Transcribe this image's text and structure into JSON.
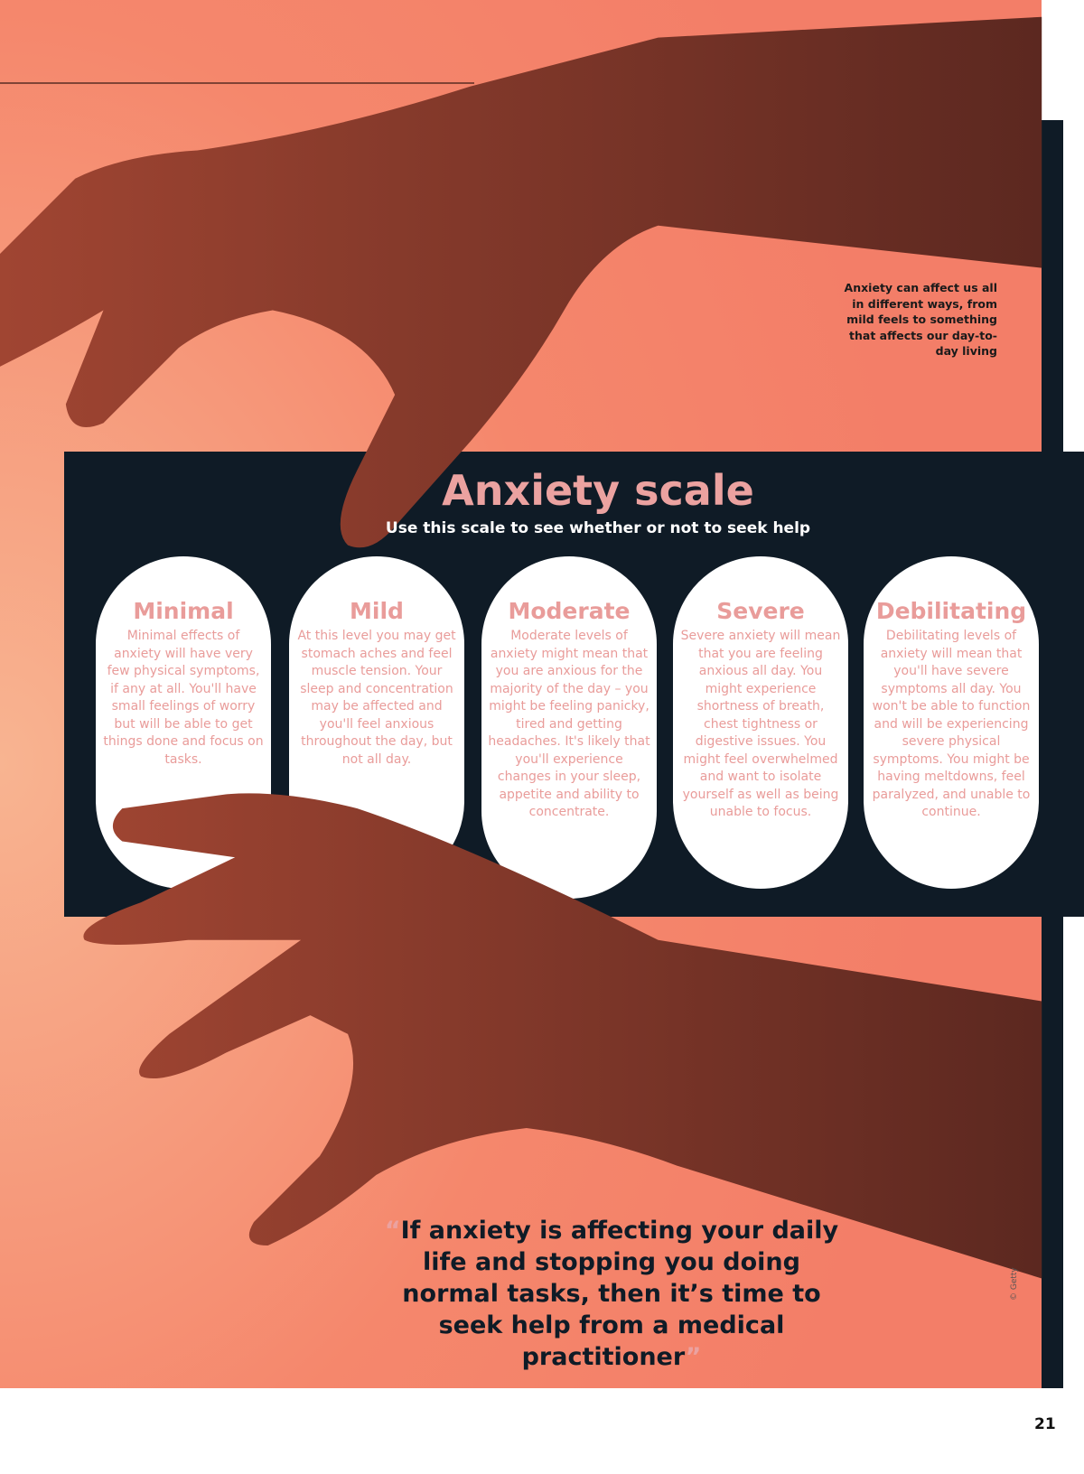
{
  "intro": "Anxiety can affect us all in different ways, from mild feels to something that affects our day-to-day living",
  "scale": {
    "title": "Anxiety scale",
    "subtitle": "Use this scale to see whether or not to seek help",
    "levels": [
      {
        "name": "Minimal",
        "text": "Minimal effects of anxiety will have very few physical symptoms, if any at all. You'll have small feelings of worry but will be able to get things done and focus on tasks."
      },
      {
        "name": "Mild",
        "text": "At this level you may get stomach aches and feel muscle tension. Your sleep and concentration may be affected and you'll feel anxious throughout the day, but not all day."
      },
      {
        "name": "Moderate",
        "text": "Moderate levels of anxiety might mean that you are anxious for the majority of the day – you might be feeling panicky, tired and getting headaches. It's likely that you'll experience changes in your sleep, appetite and ability to concentrate."
      },
      {
        "name": "Severe",
        "text": "Severe anxiety will mean that you are feeling anxious all day. You might experience shortness of breath, chest tightness or digestive issues. You might feel overwhelmed and want to isolate yourself as well as being unable to focus."
      },
      {
        "name": "Debilitating",
        "text": "Debilitating levels of anxiety will mean that you'll have severe symptoms all day. You won't be able to function and will be experiencing severe physical symptoms. You might be having meltdowns, feel paralyzed, and unable to continue."
      }
    ]
  },
  "quote": {
    "open": "“",
    "text": "If anxiety is affecting your daily life and stopping you doing normal tasks, then it’s time to seek help from a medical practitioner",
    "close": "”"
  },
  "credit": "© Getty",
  "page_number": "21"
}
